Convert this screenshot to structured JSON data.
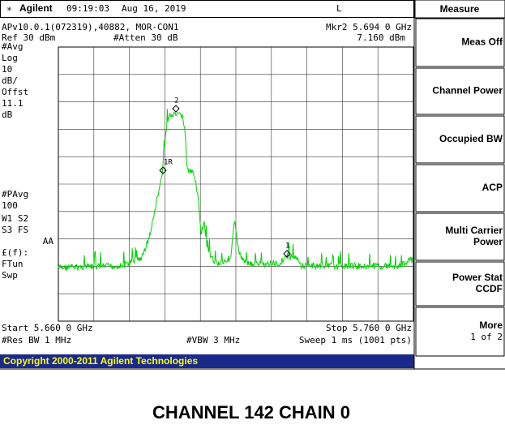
{
  "header": {
    "brand": "Agilent",
    "time": "09:19:03",
    "date": "Aug 16, 2019",
    "mode": "L"
  },
  "info": {
    "line1": "APv10.0.1(072319),40882, MOR-CON1",
    "marker": "Mkr2  5.694 0 GHz",
    "ref": "Ref 30 dBm",
    "atten": "#Atten 30 dB",
    "marker_value": "7.160 dBm"
  },
  "left_labels": [
    "#Avg",
    "Log",
    "10",
    "dB/",
    "Offst",
    "11.1",
    "dB",
    "#PAvg",
    "100",
    "W1  S2",
    "S3  FS",
    "AA",
    "£(f):",
    "FTun",
    "Swp"
  ],
  "markers": [
    "2",
    "1R",
    "1"
  ],
  "footer": {
    "start": "Start 5.660 0 GHz",
    "stop": "Stop 5.760 0 GHz",
    "rbw": "#Res BW 1 MHz",
    "vbw": "#VBW 3 MHz",
    "sweep": "Sweep 1 ms (1001 pts)"
  },
  "copyright": "Copyright 2000-2011 Agilent Technologies",
  "softkeys": {
    "title": "Measure",
    "keys": [
      [
        "Meas Off"
      ],
      [
        "Channel Power"
      ],
      [
        "Occupied BW"
      ],
      [
        "ACP"
      ],
      [
        "Multi Carrier",
        "Power"
      ],
      [
        "Power Stat",
        "CCDF"
      ],
      [
        "More",
        "1 of 2"
      ]
    ]
  },
  "caption": "CHANNEL 142 CHAIN 0"
}
